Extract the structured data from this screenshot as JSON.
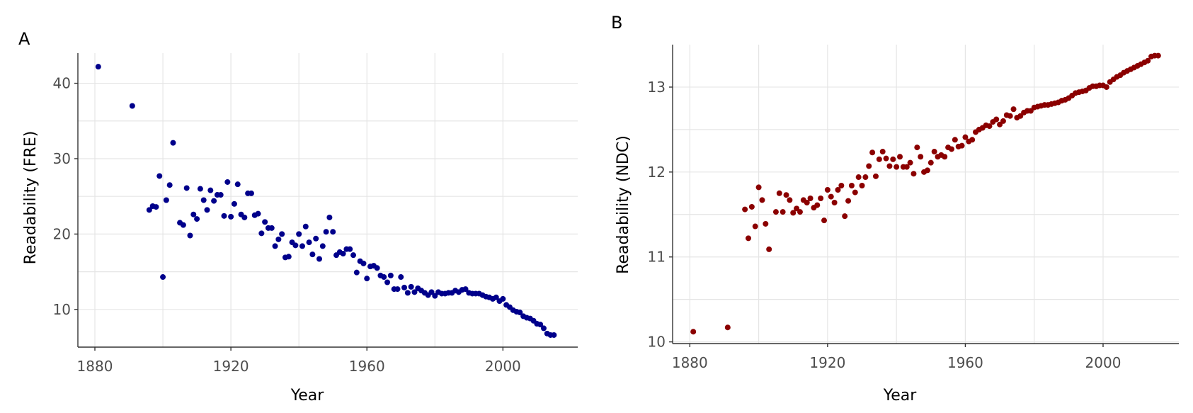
{
  "chart_data": [
    {
      "type": "scatter",
      "panel_label": "A",
      "title": "",
      "xlabel": "Year",
      "ylabel": "Readability (FRE)",
      "xlim": [
        1875,
        2022
      ],
      "ylim": [
        5,
        44
      ],
      "x_ticks": [
        1880,
        1920,
        1960,
        2000
      ],
      "y_ticks": [
        10,
        20,
        30,
        40
      ],
      "x_tick_labels": [
        "1880",
        "1920",
        "1960",
        "2000"
      ],
      "y_tick_labels": [
        "10",
        "20",
        "30",
        "40"
      ],
      "grid": true,
      "color": "#00008b",
      "points": [
        [
          1881,
          42.2
        ],
        [
          1891,
          37.0
        ],
        [
          1896,
          23.2
        ],
        [
          1897,
          23.7
        ],
        [
          1898,
          23.6
        ],
        [
          1899,
          27.7
        ],
        [
          1900,
          14.3
        ],
        [
          1901,
          24.5
        ],
        [
          1902,
          26.5
        ],
        [
          1903,
          32.1
        ],
        [
          1905,
          21.5
        ],
        [
          1906,
          21.2
        ],
        [
          1907,
          26.1
        ],
        [
          1908,
          19.8
        ],
        [
          1909,
          22.6
        ],
        [
          1910,
          22.0
        ],
        [
          1911,
          26.0
        ],
        [
          1912,
          24.5
        ],
        [
          1913,
          23.2
        ],
        [
          1914,
          25.8
        ],
        [
          1915,
          24.4
        ],
        [
          1916,
          25.2
        ],
        [
          1917,
          25.2
        ],
        [
          1918,
          22.4
        ],
        [
          1919,
          26.9
        ],
        [
          1920,
          22.3
        ],
        [
          1921,
          24.0
        ],
        [
          1922,
          26.6
        ],
        [
          1923,
          22.6
        ],
        [
          1924,
          22.2
        ],
        [
          1925,
          25.4
        ],
        [
          1926,
          25.4
        ],
        [
          1927,
          22.5
        ],
        [
          1928,
          22.7
        ],
        [
          1929,
          20.1
        ],
        [
          1930,
          21.6
        ],
        [
          1931,
          20.8
        ],
        [
          1932,
          20.8
        ],
        [
          1933,
          18.4
        ],
        [
          1934,
          19.3
        ],
        [
          1935,
          20.0
        ],
        [
          1936,
          16.9
        ],
        [
          1937,
          17.0
        ],
        [
          1938,
          18.9
        ],
        [
          1939,
          18.5
        ],
        [
          1940,
          20.0
        ],
        [
          1941,
          18.4
        ],
        [
          1942,
          21.0
        ],
        [
          1943,
          18.9
        ],
        [
          1944,
          17.3
        ],
        [
          1945,
          19.4
        ],
        [
          1946,
          16.7
        ],
        [
          1947,
          18.4
        ],
        [
          1948,
          20.3
        ],
        [
          1949,
          22.2
        ],
        [
          1950,
          20.3
        ],
        [
          1951,
          17.2
        ],
        [
          1952,
          17.6
        ],
        [
          1953,
          17.4
        ],
        [
          1954,
          18.0
        ],
        [
          1955,
          18.0
        ],
        [
          1956,
          17.2
        ],
        [
          1957,
          14.9
        ],
        [
          1958,
          16.4
        ],
        [
          1959,
          16.1
        ],
        [
          1960,
          14.1
        ],
        [
          1961,
          15.7
        ],
        [
          1962,
          15.8
        ],
        [
          1963,
          15.5
        ],
        [
          1964,
          14.5
        ],
        [
          1965,
          14.3
        ],
        [
          1966,
          13.6
        ],
        [
          1967,
          14.5
        ],
        [
          1968,
          12.7
        ],
        [
          1969,
          12.7
        ],
        [
          1970,
          14.3
        ],
        [
          1971,
          12.9
        ],
        [
          1972,
          12.2
        ],
        [
          1973,
          13.0
        ],
        [
          1974,
          12.3
        ],
        [
          1975,
          12.8
        ],
        [
          1976,
          12.5
        ],
        [
          1977,
          12.2
        ],
        [
          1978,
          11.9
        ],
        [
          1979,
          12.3
        ],
        [
          1980,
          11.8
        ],
        [
          1981,
          12.3
        ],
        [
          1982,
          12.1
        ],
        [
          1983,
          12.1
        ],
        [
          1984,
          12.2
        ],
        [
          1985,
          12.2
        ],
        [
          1986,
          12.5
        ],
        [
          1987,
          12.3
        ],
        [
          1988,
          12.6
        ],
        [
          1989,
          12.7
        ],
        [
          1990,
          12.2
        ],
        [
          1991,
          12.1
        ],
        [
          1992,
          12.1
        ],
        [
          1993,
          12.1
        ],
        [
          1994,
          11.9
        ],
        [
          1995,
          11.7
        ],
        [
          1996,
          11.6
        ],
        [
          1997,
          11.4
        ],
        [
          1998,
          11.6
        ],
        [
          1999,
          11.1
        ],
        [
          2000,
          11.4
        ],
        [
          2001,
          10.6
        ],
        [
          2002,
          10.3
        ],
        [
          2003,
          9.9
        ],
        [
          2004,
          9.7
        ],
        [
          2005,
          9.6
        ],
        [
          2006,
          9.1
        ],
        [
          2007,
          8.9
        ],
        [
          2008,
          8.8
        ],
        [
          2009,
          8.5
        ],
        [
          2010,
          8.1
        ],
        [
          2011,
          8.0
        ],
        [
          2012,
          7.5
        ],
        [
          2013,
          6.8
        ],
        [
          2014,
          6.6
        ],
        [
          2015,
          6.6
        ]
      ]
    },
    {
      "type": "scatter",
      "panel_label": "B",
      "title": "",
      "xlabel": "Year",
      "ylabel": "Readability (NDC)",
      "xlim": [
        1875,
        2022
      ],
      "ylim": [
        9.98,
        13.5
      ],
      "x_ticks": [
        1880,
        1920,
        1960,
        2000
      ],
      "y_ticks": [
        10,
        11,
        12,
        13
      ],
      "x_tick_labels": [
        "1880",
        "1920",
        "1960",
        "2000"
      ],
      "y_tick_labels": [
        "10",
        "11",
        "12",
        "13"
      ],
      "grid": true,
      "color": "#8b0000",
      "points": [
        [
          1881,
          10.12
        ],
        [
          1891,
          10.17
        ],
        [
          1896,
          11.56
        ],
        [
          1897,
          11.22
        ],
        [
          1898,
          11.59
        ],
        [
          1899,
          11.36
        ],
        [
          1900,
          11.82
        ],
        [
          1901,
          11.67
        ],
        [
          1902,
          11.39
        ],
        [
          1903,
          11.09
        ],
        [
          1905,
          11.53
        ],
        [
          1906,
          11.75
        ],
        [
          1907,
          11.53
        ],
        [
          1908,
          11.73
        ],
        [
          1909,
          11.67
        ],
        [
          1910,
          11.52
        ],
        [
          1911,
          11.57
        ],
        [
          1912,
          11.53
        ],
        [
          1913,
          11.67
        ],
        [
          1914,
          11.64
        ],
        [
          1915,
          11.69
        ],
        [
          1916,
          11.58
        ],
        [
          1917,
          11.61
        ],
        [
          1918,
          11.69
        ],
        [
          1919,
          11.43
        ],
        [
          1920,
          11.79
        ],
        [
          1921,
          11.71
        ],
        [
          1922,
          11.64
        ],
        [
          1923,
          11.79
        ],
        [
          1924,
          11.84
        ],
        [
          1925,
          11.48
        ],
        [
          1926,
          11.66
        ],
        [
          1927,
          11.84
        ],
        [
          1928,
          11.76
        ],
        [
          1929,
          11.94
        ],
        [
          1930,
          11.84
        ],
        [
          1931,
          11.94
        ],
        [
          1932,
          12.07
        ],
        [
          1933,
          12.23
        ],
        [
          1934,
          11.95
        ],
        [
          1935,
          12.15
        ],
        [
          1936,
          12.24
        ],
        [
          1937,
          12.16
        ],
        [
          1938,
          12.07
        ],
        [
          1939,
          12.15
        ],
        [
          1940,
          12.06
        ],
        [
          1941,
          12.18
        ],
        [
          1942,
          12.06
        ],
        [
          1943,
          12.06
        ],
        [
          1944,
          12.11
        ],
        [
          1945,
          11.98
        ],
        [
          1946,
          12.29
        ],
        [
          1947,
          12.18
        ],
        [
          1948,
          12.0
        ],
        [
          1949,
          12.02
        ],
        [
          1950,
          12.11
        ],
        [
          1951,
          12.24
        ],
        [
          1952,
          12.18
        ],
        [
          1953,
          12.2
        ],
        [
          1954,
          12.18
        ],
        [
          1955,
          12.29
        ],
        [
          1956,
          12.27
        ],
        [
          1957,
          12.38
        ],
        [
          1958,
          12.3
        ],
        [
          1959,
          12.31
        ],
        [
          1960,
          12.41
        ],
        [
          1961,
          12.36
        ],
        [
          1962,
          12.38
        ],
        [
          1963,
          12.47
        ],
        [
          1964,
          12.5
        ],
        [
          1965,
          12.52
        ],
        [
          1966,
          12.55
        ],
        [
          1967,
          12.54
        ],
        [
          1968,
          12.59
        ],
        [
          1969,
          12.62
        ],
        [
          1970,
          12.56
        ],
        [
          1971,
          12.6
        ],
        [
          1972,
          12.67
        ],
        [
          1973,
          12.66
        ],
        [
          1974,
          12.74
        ],
        [
          1975,
          12.64
        ],
        [
          1976,
          12.66
        ],
        [
          1977,
          12.7
        ],
        [
          1978,
          12.72
        ],
        [
          1979,
          12.72
        ],
        [
          1980,
          12.76
        ],
        [
          1981,
          12.77
        ],
        [
          1982,
          12.78
        ],
        [
          1983,
          12.79
        ],
        [
          1984,
          12.79
        ],
        [
          1985,
          12.8
        ],
        [
          1986,
          12.81
        ],
        [
          1987,
          12.82
        ],
        [
          1988,
          12.84
        ],
        [
          1989,
          12.85
        ],
        [
          1990,
          12.87
        ],
        [
          1991,
          12.9
        ],
        [
          1992,
          12.93
        ],
        [
          1993,
          12.94
        ],
        [
          1994,
          12.95
        ],
        [
          1995,
          12.96
        ],
        [
          1996,
          12.99
        ],
        [
          1997,
          13.01
        ],
        [
          1998,
          13.01
        ],
        [
          1999,
          13.02
        ],
        [
          2000,
          13.02
        ],
        [
          2001,
          13.0
        ],
        [
          2002,
          13.06
        ],
        [
          2003,
          13.09
        ],
        [
          2004,
          13.12
        ],
        [
          2005,
          13.14
        ],
        [
          2006,
          13.17
        ],
        [
          2007,
          13.19
        ],
        [
          2008,
          13.21
        ],
        [
          2009,
          13.23
        ],
        [
          2010,
          13.25
        ],
        [
          2011,
          13.27
        ],
        [
          2012,
          13.29
        ],
        [
          2013,
          13.31
        ],
        [
          2014,
          13.36
        ],
        [
          2015,
          13.37
        ],
        [
          2016,
          13.37
        ]
      ]
    }
  ]
}
